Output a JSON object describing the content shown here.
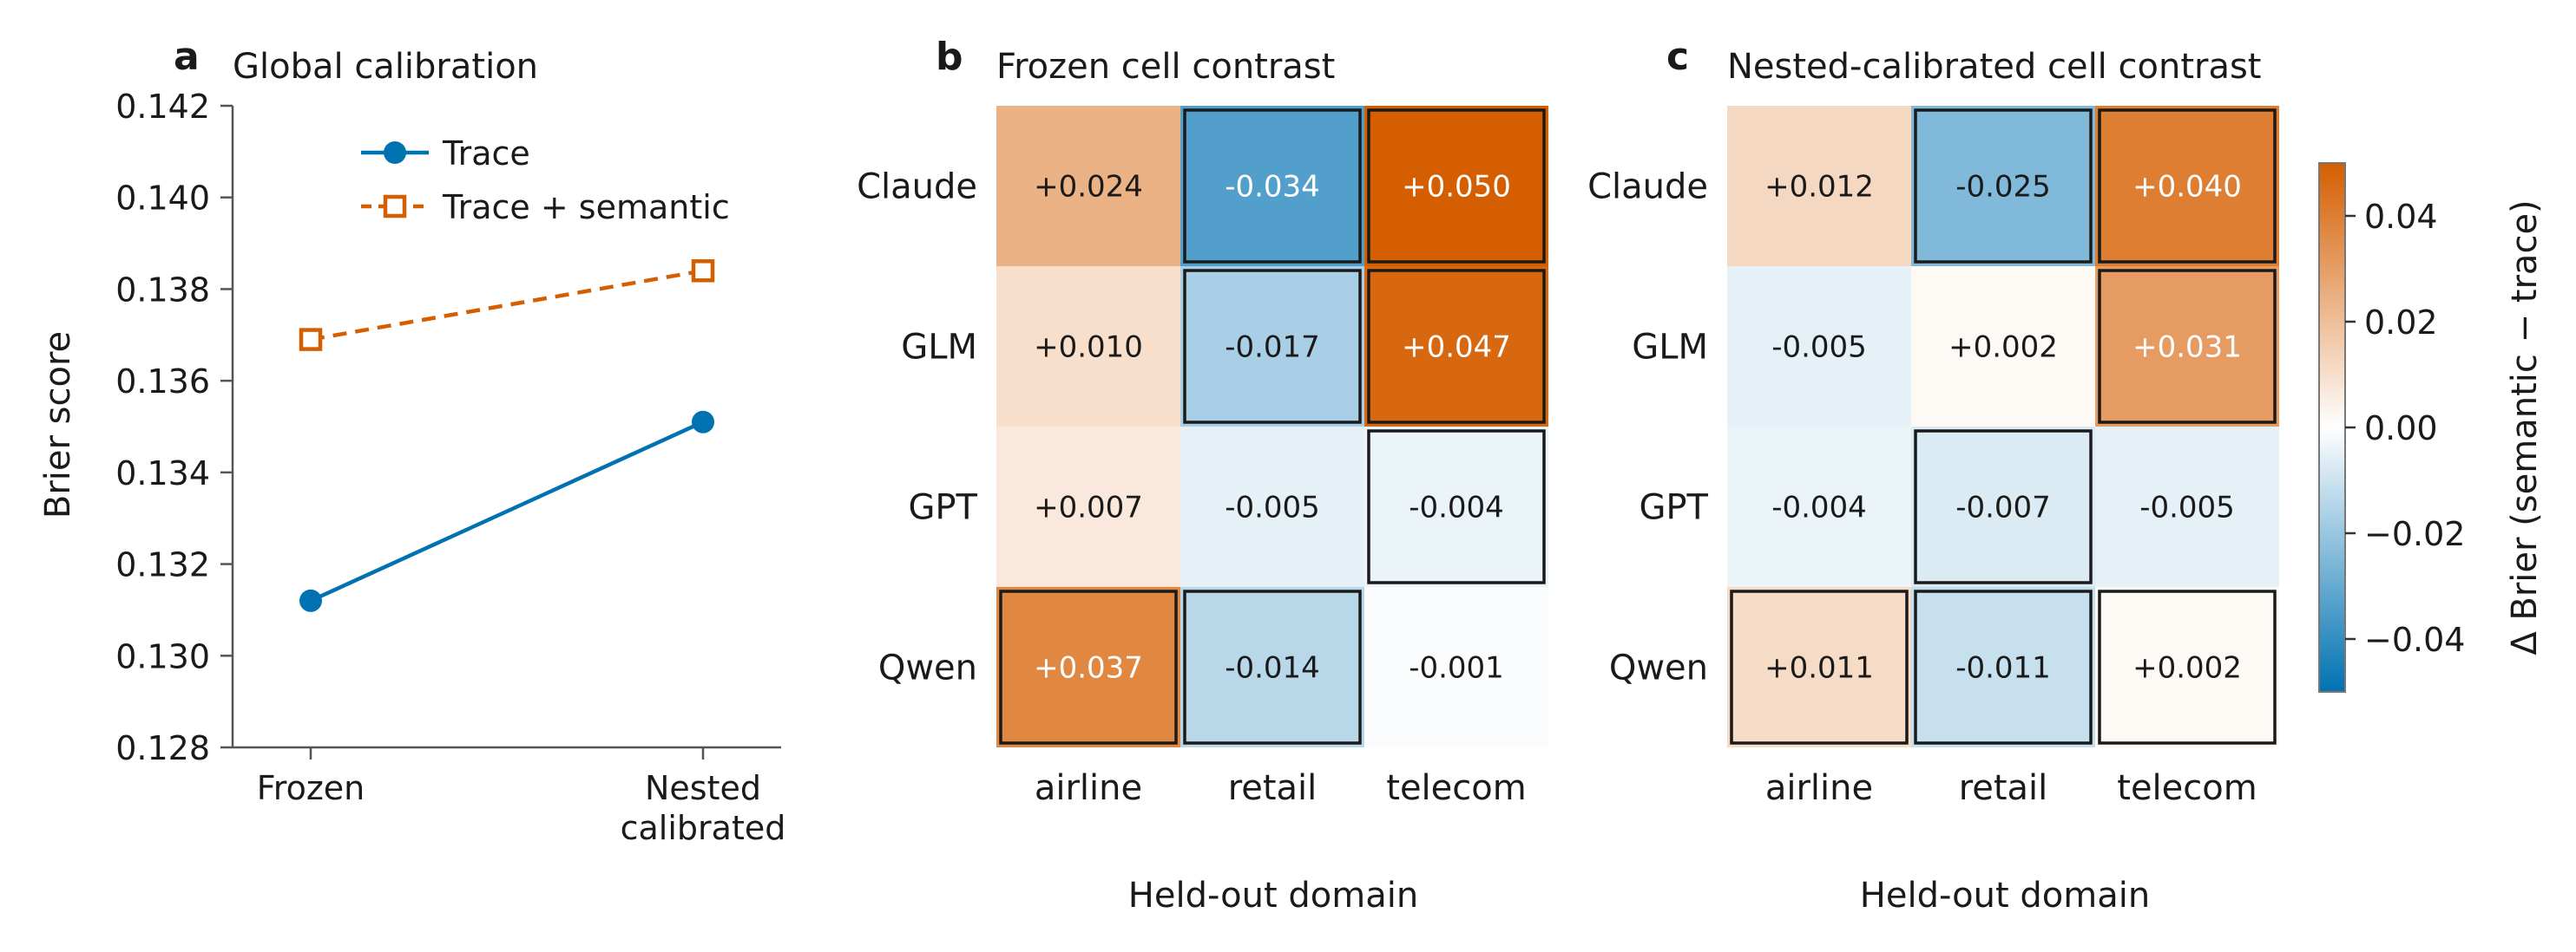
{
  "chart_data": [
    {
      "type": "line",
      "panel_label": "a",
      "title": "Global calibration",
      "xlabel": "",
      "ylabel": "Brier score",
      "categories": [
        "Frozen",
        "Nested\ncalibrated"
      ],
      "ylim": [
        0.128,
        0.142
      ],
      "yticks": [
        "0.128",
        "0.130",
        "0.132",
        "0.134",
        "0.136",
        "0.138",
        "0.140",
        "0.142"
      ],
      "grid": false,
      "legend": "top-center",
      "series": [
        {
          "name": "Trace",
          "values": [
            0.1312,
            0.1351
          ],
          "color": "#0072b2",
          "marker": "filled-circle",
          "line": "solid"
        },
        {
          "name": "Trace + semantic",
          "values": [
            0.1369,
            0.1384
          ],
          "color": "#d55e00",
          "marker": "open-square",
          "line": "dashed"
        }
      ]
    },
    {
      "type": "heatmap",
      "panel_label": "b",
      "title": "Frozen cell contrast",
      "xlabel": "Held-out domain",
      "ylabel": "",
      "x": [
        "airline",
        "retail",
        "telecom"
      ],
      "y": [
        "Claude",
        "GLM",
        "GPT",
        "Qwen"
      ],
      "values": [
        [
          0.024,
          -0.034,
          0.05
        ],
        [
          0.01,
          -0.017,
          0.047
        ],
        [
          0.007,
          -0.005,
          -0.004
        ],
        [
          0.037,
          -0.014,
          -0.001
        ]
      ],
      "labels": [
        [
          "+0.024",
          "-0.034",
          "+0.050"
        ],
        [
          "+0.010",
          "-0.017",
          "+0.047"
        ],
        [
          "+0.007",
          "-0.005",
          "-0.004"
        ],
        [
          "+0.037",
          "-0.014",
          "-0.001"
        ]
      ],
      "outlined": [
        [
          false,
          true,
          true
        ],
        [
          false,
          true,
          true
        ],
        [
          false,
          false,
          true
        ],
        [
          true,
          true,
          false
        ]
      ]
    },
    {
      "type": "heatmap",
      "panel_label": "c",
      "title": "Nested-calibrated cell contrast",
      "xlabel": "Held-out domain",
      "ylabel": "",
      "x": [
        "airline",
        "retail",
        "telecom"
      ],
      "y": [
        "Claude",
        "GLM",
        "GPT",
        "Qwen"
      ],
      "values": [
        [
          0.012,
          -0.025,
          0.04
        ],
        [
          -0.005,
          0.002,
          0.031
        ],
        [
          -0.004,
          -0.007,
          -0.005
        ],
        [
          0.011,
          -0.011,
          0.002
        ]
      ],
      "labels": [
        [
          "+0.012",
          "-0.025",
          "+0.040"
        ],
        [
          "-0.005",
          "+0.002",
          "+0.031"
        ],
        [
          "-0.004",
          "-0.007",
          "-0.005"
        ],
        [
          "+0.011",
          "-0.011",
          "+0.002"
        ]
      ],
      "outlined": [
        [
          false,
          true,
          true
        ],
        [
          false,
          false,
          true
        ],
        [
          false,
          true,
          false
        ],
        [
          true,
          true,
          true
        ]
      ]
    }
  ],
  "colorbar": {
    "label": "Δ Brier (semantic − trace)",
    "range": [
      -0.05,
      0.05
    ],
    "ticks": [
      0.04,
      0.02,
      0.0,
      -0.02,
      -0.04
    ],
    "tick_labels": [
      "0.04",
      "0.02",
      "0.00",
      "−0.02",
      "−0.04"
    ],
    "negative_color": "#0072b2",
    "neutral_color": "#ffffff",
    "positive_color": "#d55e00"
  }
}
